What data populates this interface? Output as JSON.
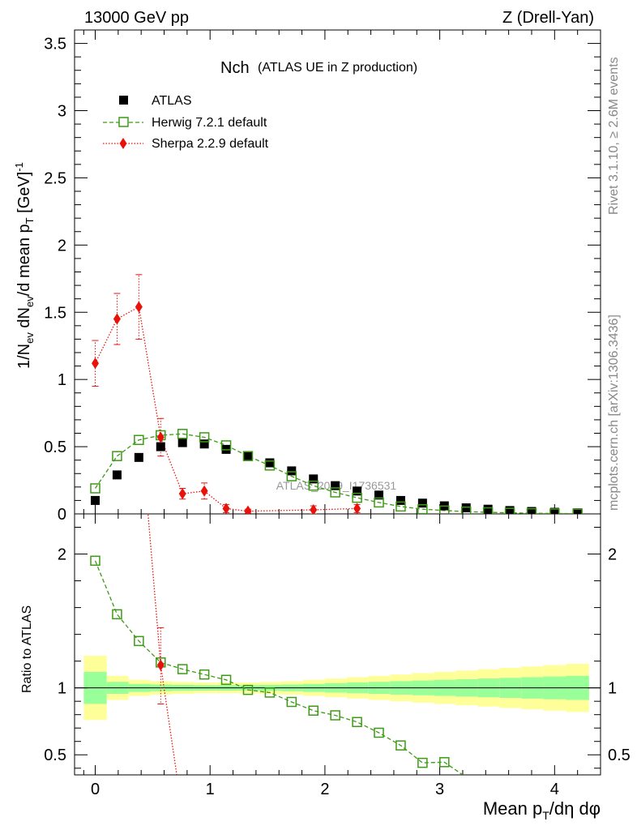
{
  "header": {
    "left": "13000 GeV pp",
    "right": "Z (Drell-Yan)"
  },
  "side_labels": {
    "rivet": "Rivet 3.1.10, ≥ 2.6M events",
    "mcplots": "mcplots.cern.ch [arXiv:1306.3436]"
  },
  "plot_title": {
    "main": "Nch",
    "sub": "(ATLAS UE in Z production)"
  },
  "watermark": "ATLAS_2019_I1736531",
  "chart_data": [
    {
      "type": "scatter",
      "panel": "main",
      "ylabel": {
        "a": "1/N",
        "a_sub": "ev",
        "b": " dN",
        "b_sub": "ev",
        "c": "/d mean p",
        "c_sub": "T",
        "d": " [GeV]",
        "d_sup": "-1"
      },
      "xlim": [
        -0.18,
        4.4
      ],
      "ylim": [
        0,
        3.6
      ],
      "yticks": [
        0,
        0.5,
        1,
        1.5,
        2,
        2.5,
        3,
        3.5
      ],
      "ytick_labels": [
        "0",
        "0.5",
        "1",
        "1.5",
        "2",
        "2.5",
        "3",
        "3.5"
      ],
      "legend_position": "top-left",
      "series": [
        {
          "name": "ATLAS",
          "style": "square",
          "color": "#000000",
          "x": [
            0.0,
            0.19,
            0.38,
            0.57,
            0.76,
            0.95,
            1.14,
            1.33,
            1.52,
            1.71,
            1.9,
            2.09,
            2.28,
            2.47,
            2.66,
            2.85,
            3.04,
            3.23,
            3.42,
            3.61,
            3.8,
            4.0,
            4.2
          ],
          "y": [
            0.1,
            0.29,
            0.42,
            0.5,
            0.53,
            0.52,
            0.48,
            0.43,
            0.38,
            0.32,
            0.26,
            0.21,
            0.17,
            0.14,
            0.1,
            0.08,
            0.06,
            0.045,
            0.035,
            0.025,
            0.018,
            0.012,
            0.008
          ]
        },
        {
          "name": "Herwig 7.2.1 default",
          "style": "open-square-dashed",
          "color": "#3d9a15",
          "x": [
            0.0,
            0.19,
            0.38,
            0.57,
            0.76,
            0.95,
            1.14,
            1.33,
            1.52,
            1.71,
            1.9,
            2.09,
            2.28,
            2.47,
            2.66,
            2.85,
            3.04,
            3.23,
            3.42,
            3.61,
            3.8,
            4.0,
            4.2
          ],
          "y": [
            0.19,
            0.43,
            0.55,
            0.585,
            0.595,
            0.57,
            0.51,
            0.43,
            0.36,
            0.28,
            0.21,
            0.16,
            0.12,
            0.085,
            0.055,
            0.035,
            0.025,
            0.017,
            0.012,
            0.008,
            0.005,
            0.003,
            0.002
          ]
        },
        {
          "name": "Sherpa 2.2.9 default",
          "style": "diamond-dotted",
          "color": "#e8120b",
          "x": [
            0.0,
            0.19,
            0.38,
            0.57,
            0.76,
            0.95,
            1.14,
            1.33,
            1.9,
            2.28
          ],
          "y": [
            1.12,
            1.45,
            1.54,
            0.57,
            0.15,
            0.17,
            0.04,
            0.02,
            0.03,
            0.04
          ],
          "err": [
            0.17,
            0.19,
            0.24,
            0.14,
            0.04,
            0.06,
            0.03,
            0.015,
            0.03,
            0.03
          ]
        }
      ]
    },
    {
      "type": "line",
      "panel": "ratio",
      "ylabel": "Ratio to ATLAS",
      "xlabel": {
        "a": "Mean p",
        "a_sub": "T",
        "b": "/dη dφ"
      },
      "xlim": [
        -0.18,
        4.4
      ],
      "ylim": [
        0.35,
        2.3
      ],
      "xticks": [
        0,
        1,
        2,
        3,
        4
      ],
      "xtick_labels": [
        "0",
        "1",
        "2",
        "3",
        "4"
      ],
      "yticks": [
        0.5,
        1,
        2
      ],
      "ytick_labels": [
        "0.5",
        "1",
        "2"
      ],
      "series": [
        {
          "name": "Herwig 7.2.1 default",
          "color": "#3d9a15",
          "x": [
            0.0,
            0.19,
            0.38,
            0.57,
            0.76,
            0.95,
            1.14,
            1.33,
            1.52,
            1.71,
            1.9,
            2.09,
            2.28,
            2.47,
            2.66,
            2.85,
            3.04
          ],
          "y": [
            1.95,
            1.55,
            1.35,
            1.19,
            1.14,
            1.1,
            1.06,
            0.985,
            0.965,
            0.895,
            0.83,
            0.795,
            0.745,
            0.665,
            0.57,
            0.44,
            0.445
          ],
          "tail_to_x": 3.2
        },
        {
          "name": "Sherpa 2.2.9 default",
          "color": "#e8120b",
          "x": [
            0.45,
            0.57,
            0.71
          ],
          "y": [
            2.4,
            1.17,
            0.35
          ]
        }
      ],
      "bands": {
        "x_edges": [
          -0.1,
          0.1,
          0.29,
          0.48,
          0.67,
          0.86,
          1.05,
          1.24,
          1.43,
          1.62,
          1.81,
          2.0,
          2.19,
          2.38,
          2.57,
          2.76,
          2.95,
          3.14,
          3.33,
          3.52,
          3.71,
          3.9,
          4.1,
          4.3
        ],
        "yellow_half": [
          0.24,
          0.09,
          0.06,
          0.05,
          0.045,
          0.04,
          0.04,
          0.04,
          0.045,
          0.05,
          0.06,
          0.07,
          0.08,
          0.09,
          0.1,
          0.11,
          0.12,
          0.13,
          0.14,
          0.15,
          0.16,
          0.17,
          0.18
        ],
        "green_half": [
          0.12,
          0.045,
          0.03,
          0.025,
          0.022,
          0.02,
          0.02,
          0.02,
          0.022,
          0.025,
          0.03,
          0.035,
          0.04,
          0.045,
          0.05,
          0.055,
          0.06,
          0.065,
          0.07,
          0.075,
          0.08,
          0.085,
          0.09
        ],
        "yellow_color": "#ffff99",
        "green_color": "#99ff99"
      }
    }
  ]
}
